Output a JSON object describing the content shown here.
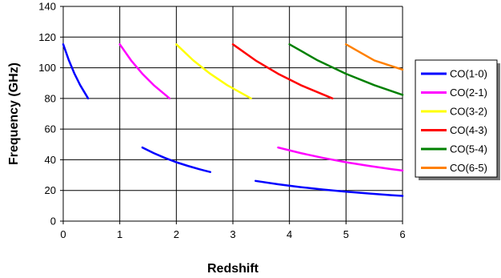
{
  "chart_data": {
    "type": "line",
    "title": "",
    "xlabel": "Redshift",
    "ylabel": "Frequency (GHz)",
    "xlim": [
      0,
      6
    ],
    "ylim": [
      0,
      140
    ],
    "x_ticks": [
      "0",
      "1",
      "2",
      "3",
      "4",
      "5",
      "6"
    ],
    "y_ticks": [
      "0",
      "20",
      "40",
      "60",
      "80",
      "100",
      "120",
      "140"
    ],
    "grid": true,
    "legend_position": "right",
    "series": [
      {
        "name": "CO(1-0)",
        "color": "#0000ff",
        "segments": [
          [
            [
              0,
              115.27
            ],
            [
              0.1,
              104.79
            ],
            [
              0.2,
              96.06
            ],
            [
              0.3,
              88.67
            ],
            [
              0.44,
              80.05
            ]
          ],
          [
            [
              1.4,
              48.03
            ],
            [
              1.6,
              44.33
            ],
            [
              1.8,
              41.17
            ],
            [
              2.0,
              38.42
            ],
            [
              2.2,
              36.02
            ],
            [
              2.4,
              33.9
            ],
            [
              2.6,
              32.02
            ]
          ],
          [
            [
              3.4,
              26.2
            ],
            [
              3.8,
              24.01
            ],
            [
              4.2,
              22.17
            ],
            [
              4.6,
              20.58
            ],
            [
              5.0,
              19.21
            ],
            [
              5.4,
              18.01
            ],
            [
              5.8,
              16.95
            ],
            [
              6.0,
              16.47
            ]
          ]
        ]
      },
      {
        "name": "CO(2-1)",
        "color": "#ff00ff",
        "segments": [
          [
            [
              1.0,
              115.27
            ],
            [
              1.2,
              104.79
            ],
            [
              1.4,
              96.06
            ],
            [
              1.6,
              88.67
            ],
            [
              1.88,
              80.05
            ]
          ],
          [
            [
              3.8,
              48.03
            ],
            [
              4.2,
              44.33
            ],
            [
              4.6,
              41.17
            ],
            [
              5.0,
              38.42
            ],
            [
              5.4,
              36.02
            ],
            [
              5.8,
              33.9
            ],
            [
              6.0,
              32.94
            ]
          ]
        ]
      },
      {
        "name": "CO(3-2)",
        "color": "#ffff00",
        "segments": [
          [
            [
              2.0,
              115.27
            ],
            [
              2.3,
              104.79
            ],
            [
              2.6,
              96.06
            ],
            [
              2.9,
              88.67
            ],
            [
              3.32,
              80.05
            ]
          ]
        ]
      },
      {
        "name": "CO(4-3)",
        "color": "#ff0000",
        "segments": [
          [
            [
              3.0,
              115.27
            ],
            [
              3.4,
              104.79
            ],
            [
              3.8,
              96.06
            ],
            [
              4.2,
              88.67
            ],
            [
              4.76,
              80.05
            ]
          ]
        ]
      },
      {
        "name": "CO(5-4)",
        "color": "#008000",
        "segments": [
          [
            [
              4.0,
              115.27
            ],
            [
              4.5,
              104.79
            ],
            [
              5.0,
              96.06
            ],
            [
              5.5,
              88.67
            ],
            [
              6.0,
              82.34
            ]
          ]
        ]
      },
      {
        "name": "CO(6-5)",
        "color": "#ff8000",
        "segments": [
          [
            [
              5.0,
              115.27
            ],
            [
              5.5,
              104.79
            ],
            [
              6.0,
              98.8
            ]
          ]
        ]
      }
    ]
  }
}
